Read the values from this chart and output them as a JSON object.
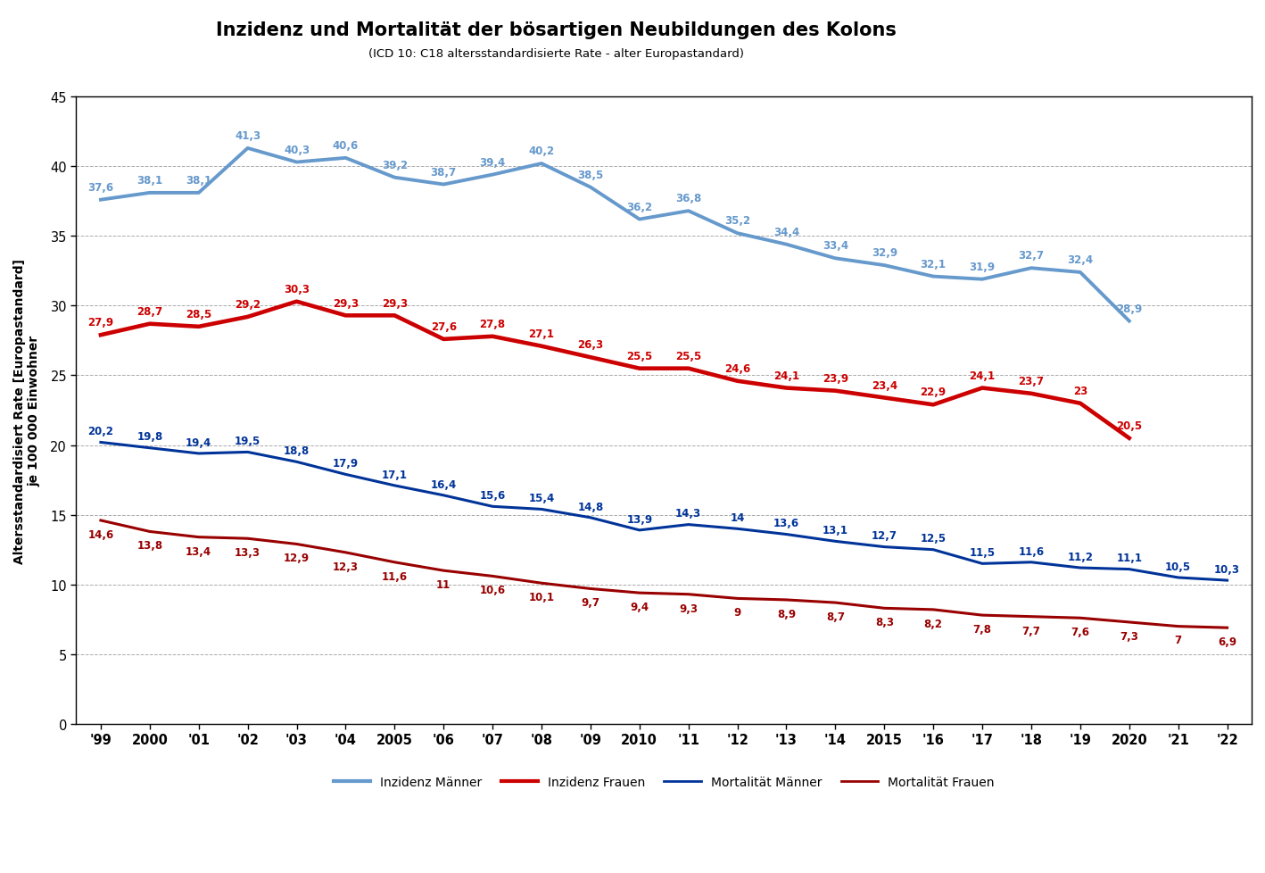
{
  "title": "Inzidenz und Mortalität der bösartigen Neubildungen des Kolons",
  "subtitle": "(ICD 10: C18 altersstandardisierte Rate - alter Europastandard)",
  "ylabel": "Altersstandardisiert Rate [Europastandard]\nje 100 000 Einwohner",
  "xlabels": [
    "'99",
    "2000",
    "'01",
    "'02",
    "'03",
    "'04",
    "2005",
    "'06",
    "'07",
    "'08",
    "'09",
    "2010",
    "'11",
    "'12",
    "'13",
    "'14",
    "2015",
    "'16",
    "'17",
    "'18",
    "'19",
    "2020",
    "'21",
    "'22"
  ],
  "inzidenz_maenner": [
    37.6,
    38.1,
    38.1,
    41.3,
    40.3,
    40.6,
    39.2,
    38.7,
    39.4,
    40.2,
    38.5,
    36.2,
    36.8,
    35.2,
    34.4,
    33.4,
    32.9,
    32.1,
    31.9,
    32.7,
    32.4,
    28.9,
    null,
    null
  ],
  "inzidenz_frauen": [
    27.9,
    28.7,
    28.5,
    29.2,
    30.3,
    29.3,
    29.3,
    27.6,
    27.8,
    27.1,
    26.3,
    25.5,
    25.5,
    24.6,
    24.1,
    23.9,
    23.4,
    22.9,
    24.1,
    23.7,
    23.0,
    20.5,
    null,
    null
  ],
  "mortalitaet_maenner": [
    20.2,
    19.8,
    19.4,
    19.5,
    18.8,
    17.9,
    17.1,
    16.4,
    15.6,
    15.4,
    14.8,
    13.9,
    14.3,
    14.0,
    13.6,
    13.1,
    12.7,
    12.5,
    11.5,
    11.6,
    11.2,
    11.1,
    10.5,
    10.3
  ],
  "mortalitaet_frauen": [
    14.6,
    13.8,
    13.4,
    13.3,
    12.9,
    12.3,
    11.6,
    11.0,
    10.6,
    10.1,
    9.7,
    9.4,
    9.3,
    9.0,
    8.9,
    8.7,
    8.3,
    8.2,
    7.8,
    7.7,
    7.6,
    7.3,
    7.0,
    6.9
  ],
  "color_inzidenz_maenner": "#6699CC",
  "color_inzidenz_frauen": "#CC0000",
  "color_mortalitaet_maenner": "#003399",
  "color_mortalitaet_frauen": "#990000",
  "ylim": [
    0,
    45
  ],
  "yticks": [
    0,
    5,
    10,
    15,
    20,
    25,
    30,
    35,
    40,
    45
  ],
  "background_color": "#ffffff",
  "grid_color": "#aaaaaa",
  "label_inzidenz_maenner": "Inzidenz Männer",
  "label_inzidenz_frauen": "Inzidenz Frauen",
  "label_mortalitaet_maenner": "Mortalität Männer",
  "label_mortalitaet_frauen": "Mortalität Frauen",
  "lw_inzidenz": 2.8,
  "lw_mortalitaet": 2.2,
  "fontsize_label": 8.5
}
